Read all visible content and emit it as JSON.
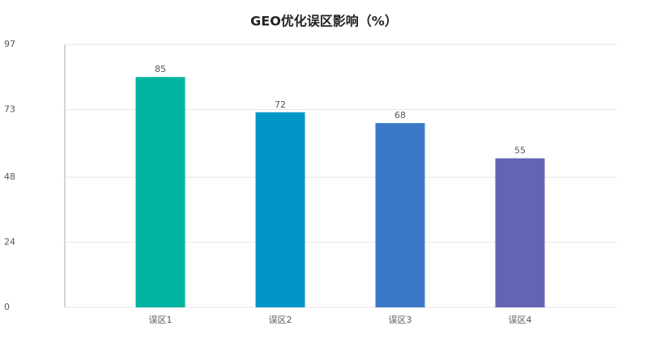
{
  "chart_data": {
    "type": "bar",
    "title": "GEO优化误区影响（%）",
    "categories": [
      "误区1",
      "误区2",
      "误区3",
      "误区4"
    ],
    "values": [
      85,
      72,
      68,
      55
    ],
    "colors": [
      "#00b3a0",
      "#0096c8",
      "#3b78c8",
      "#6464b4"
    ],
    "ylim": [
      0,
      97
    ],
    "yticks": [
      0,
      24,
      48,
      73,
      97
    ],
    "grid": true
  }
}
